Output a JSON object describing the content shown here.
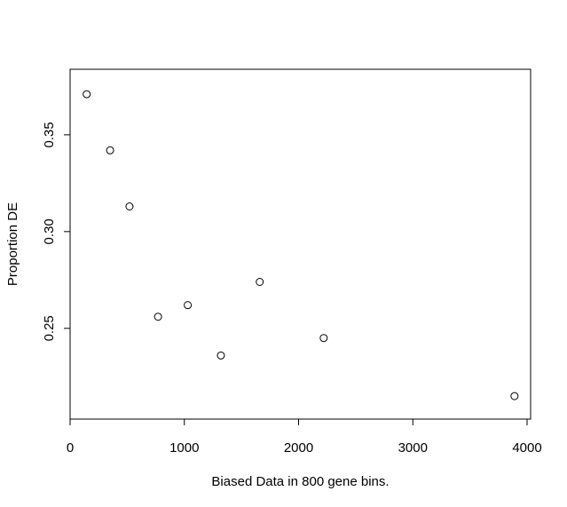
{
  "chart_data": {
    "type": "scatter",
    "xlabel": "Biased Data in 800 gene bins.",
    "ylabel": "Proportion DE",
    "xlim": [
      0,
      4000
    ],
    "ylim": [
      0.21,
      0.377
    ],
    "x_ticks": [
      0,
      1000,
      2000,
      3000,
      4000
    ],
    "x_tick_labels": [
      "0",
      "1000",
      "2000",
      "3000",
      "4000"
    ],
    "y_ticks": [
      0.25,
      0.3,
      0.35
    ],
    "y_tick_labels": [
      "0.25",
      "0.30",
      "0.35"
    ],
    "grid": false,
    "legend": "none",
    "points": [
      {
        "x": 145,
        "y": 0.371
      },
      {
        "x": 350,
        "y": 0.342
      },
      {
        "x": 520,
        "y": 0.313
      },
      {
        "x": 770,
        "y": 0.256
      },
      {
        "x": 1030,
        "y": 0.262
      },
      {
        "x": 1320,
        "y": 0.236
      },
      {
        "x": 1660,
        "y": 0.274
      },
      {
        "x": 2220,
        "y": 0.245
      },
      {
        "x": 3890,
        "y": 0.215
      }
    ]
  }
}
